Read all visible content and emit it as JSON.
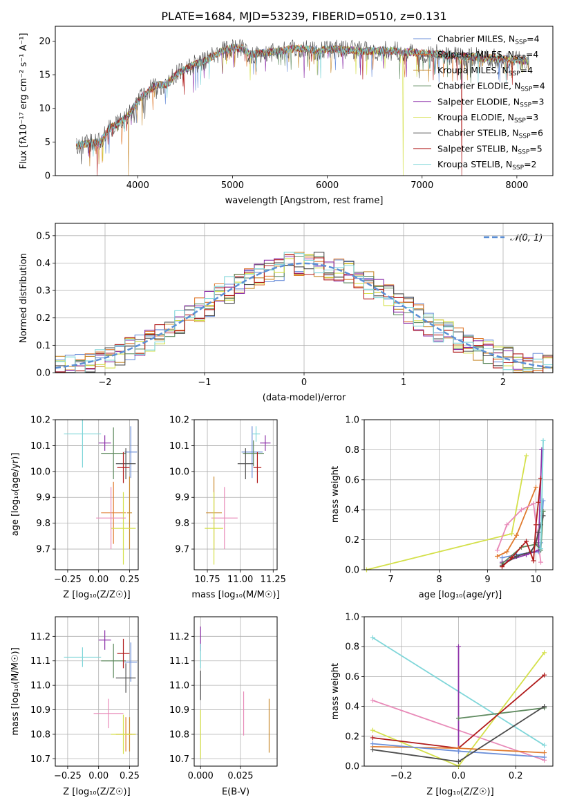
{
  "colors": {
    "Chabrier MILES": "#6b8fd9",
    "Salpeter MILES": "#e07a2e",
    "Kroupa MILES": "#c88a2e",
    "Chabrier ELODIE": "#5f8a5f",
    "Salpeter ELODIE": "#8c2fa8",
    "Kroupa ELODIE": "#d4e04a",
    "Chabrier STELIB": "#4d4d4d",
    "Salpeter STELIB": "#b01a1a",
    "Kroupa STELIB": "#7fd6d9",
    "normal_curve": "#5b8fd6"
  },
  "chart_data": [
    {
      "id": "spectrum",
      "type": "line",
      "title": "PLATE=1684, MJD=53239, FIBERID=0510, z=0.131",
      "xlabel": "wavelength [Angstrom, rest frame]",
      "ylabel": "Flux [fλ10⁻¹⁷ erg cm⁻² s⁻¹ A⁻¹]",
      "xlim": [
        3130,
        8380
      ],
      "ylim": [
        0,
        22.2
      ],
      "xticks": [
        4000,
        5000,
        6000,
        7000,
        8000
      ],
      "yticks": [
        0,
        5,
        10,
        15,
        20
      ],
      "legend_position": "top-right",
      "legend": [
        {
          "name": "Chabrier MILES, N",
          "sub": "SSP",
          "tail": "=4"
        },
        {
          "name": "Salpeter MILES, N",
          "sub": "SSP",
          "tail": "=4"
        },
        {
          "name": "Kroupa MILES, N",
          "sub": "SSP",
          "tail": "=4"
        },
        {
          "name": "Chabrier ELODIE, N",
          "sub": "SSP",
          "tail": "=4"
        },
        {
          "name": "Salpeter ELODIE, N",
          "sub": "SSP",
          "tail": "=3"
        },
        {
          "name": "Kroupa ELODIE, N",
          "sub": "SSP",
          "tail": "=3"
        },
        {
          "name": "Chabrier STELIB, N",
          "sub": "SSP",
          "tail": "=6"
        },
        {
          "name": "Salpeter STELIB, N",
          "sub": "SSP",
          "tail": "=5"
        },
        {
          "name": "Kroupa STELIB, N",
          "sub": "SSP",
          "tail": "=2"
        }
      ],
      "continuum": [
        [
          3350,
          4.5
        ],
        [
          3500,
          4.8
        ],
        [
          3600,
          5.0
        ],
        [
          3700,
          7.0
        ],
        [
          3800,
          7.8
        ],
        [
          3900,
          9.0
        ],
        [
          4000,
          11.0
        ],
        [
          4100,
          12.5
        ],
        [
          4200,
          13.5
        ],
        [
          4300,
          13.5
        ],
        [
          4400,
          15.0
        ],
        [
          4500,
          15.8
        ],
        [
          4600,
          16.5
        ],
        [
          4700,
          17.0
        ],
        [
          4800,
          17.8
        ],
        [
          4900,
          18.6
        ],
        [
          5000,
          19.0
        ],
        [
          5100,
          18.9
        ],
        [
          5200,
          18.0
        ],
        [
          5300,
          18.2
        ],
        [
          5400,
          18.4
        ],
        [
          5500,
          18.5
        ],
        [
          5600,
          18.8
        ],
        [
          5700,
          18.9
        ],
        [
          5800,
          18.8
        ],
        [
          5900,
          18.5
        ],
        [
          6000,
          18.9
        ],
        [
          6200,
          18.7
        ],
        [
          6400,
          18.5
        ],
        [
          6600,
          18.6
        ],
        [
          6800,
          18.4
        ],
        [
          7000,
          18.2
        ],
        [
          7200,
          18.0
        ],
        [
          7400,
          17.7
        ],
        [
          7600,
          17.6
        ],
        [
          7800,
          17.4
        ],
        [
          8000,
          17.2
        ],
        [
          8130,
          17.0
        ]
      ],
      "dropouts": [
        {
          "model": "Kroupa MILES",
          "x": 3900
        },
        {
          "model": "Kroupa ELODIE",
          "x": 6800
        },
        {
          "model": "Salpeter STELIB",
          "x": 7420
        },
        {
          "model": "Salpeter STELIB",
          "x": 3570
        }
      ]
    },
    {
      "id": "residual_hist",
      "type": "histogram",
      "xlabel": "(data-model)/error",
      "ylabel": "Normed distribution",
      "xlim": [
        -2.5,
        2.5
      ],
      "ylim": [
        0,
        0.545
      ],
      "xticks": [
        -2,
        -1,
        0,
        1,
        2
      ],
      "yticks": [
        0.0,
        0.1,
        0.2,
        0.3,
        0.4,
        0.5
      ],
      "bin_width": 0.1,
      "legend_position": "top-right",
      "reference_curve": {
        "label": "𝒩(0, 1)",
        "mean": 0,
        "sigma": 1
      },
      "series": [
        "Chabrier MILES",
        "Salpeter MILES",
        "Kroupa MILES",
        "Chabrier ELODIE",
        "Salpeter ELODIE",
        "Kroupa ELODIE",
        "Chabrier STELIB",
        "Salpeter STELIB",
        "Kroupa STELIB"
      ]
    },
    {
      "id": "age_vs_Z",
      "type": "scatter",
      "xlabel": "Z [log₁₀(Z/Z☉)]",
      "ylabel": "age  [log₁₀(age/yr)]",
      "xlim": [
        -0.35,
        0.32
      ],
      "ylim": [
        9.62,
        10.2
      ],
      "xticks": [
        -0.25,
        0.0,
        0.25
      ],
      "xticklabels": [
        "−0.25",
        "0.00",
        "0.25"
      ],
      "yticks": [
        9.7,
        9.8,
        9.9,
        10.0,
        10.1,
        10.2
      ],
      "points": [
        {
          "model": "Chabrier MILES",
          "x": 0.26,
          "y": 10.075,
          "xerr": 0.05,
          "yerr": 0.1
        },
        {
          "model": "Salpeter MILES",
          "x": 0.12,
          "y": 9.84,
          "xerr": 0.1,
          "yerr": 0.12
        },
        {
          "model": "Kroupa MILES",
          "x": 0.25,
          "y": 9.84,
          "xerr": 0.02,
          "yerr": 0.14
        },
        {
          "model": "Chabrier ELODIE",
          "x": 0.12,
          "y": 10.07,
          "xerr": 0.1,
          "yerr": 0.1
        },
        {
          "model": "Salpeter ELODIE",
          "x": 0.05,
          "y": 10.11,
          "xerr": 0.05,
          "yerr": 0.03
        },
        {
          "model": "Kroupa ELODIE",
          "x": 0.2,
          "y": 9.78,
          "xerr": 0.1,
          "yerr": 0.14
        },
        {
          "model": "Chabrier STELIB",
          "x": 0.22,
          "y": 10.03,
          "xerr": 0.08,
          "yerr": 0.06
        },
        {
          "model": "Salpeter STELIB",
          "x": 0.2,
          "y": 10.015,
          "xerr": 0.05,
          "yerr": 0.06
        },
        {
          "model": "Kroupa STELIB",
          "x": -0.13,
          "y": 10.145,
          "xerr": 0.15,
          "yerr": 0.13
        },
        {
          "model": "Salpeter MILES pink",
          "x": 0.1,
          "y": 9.82,
          "xerr": 0.12,
          "yerr": 0.12
        }
      ]
    },
    {
      "id": "age_vs_mass",
      "type": "scatter",
      "xlabel": "mass [log₁₀(M/M☉)]",
      "ylabel": "",
      "xlim": [
        10.65,
        11.28
      ],
      "ylim": [
        9.62,
        10.2
      ],
      "xticks": [
        10.75,
        11.0,
        11.25
      ],
      "xticklabels": [
        "10.75",
        "11.00",
        "11.25"
      ],
      "yticks": [
        9.7,
        9.8,
        9.9,
        10.0,
        10.1,
        10.2
      ],
      "points": [
        {
          "model": "Chabrier MILES",
          "x": 11.09,
          "y": 10.075,
          "xerr": 0.08,
          "yerr": 0.1
        },
        {
          "model": "Kroupa MILES",
          "x": 10.8,
          "y": 9.84,
          "xerr": 0.06,
          "yerr": 0.14
        },
        {
          "model": "Salpeter MILES pink",
          "x": 10.88,
          "y": 9.82,
          "xerr": 0.1,
          "yerr": 0.12
        },
        {
          "model": "Chabrier ELODIE",
          "x": 11.1,
          "y": 10.07,
          "xerr": 0.08,
          "yerr": 0.05
        },
        {
          "model": "Salpeter ELODIE",
          "x": 11.19,
          "y": 10.11,
          "xerr": 0.04,
          "yerr": 0.03
        },
        {
          "model": "Kroupa ELODIE",
          "x": 10.8,
          "y": 9.78,
          "xerr": 0.07,
          "yerr": 0.14
        },
        {
          "model": "Chabrier STELIB",
          "x": 11.04,
          "y": 10.03,
          "xerr": 0.06,
          "yerr": 0.06
        },
        {
          "model": "Salpeter STELIB",
          "x": 11.13,
          "y": 10.015,
          "xerr": 0.03,
          "yerr": 0.06
        },
        {
          "model": "Kroupa STELIB",
          "x": 11.12,
          "y": 10.145,
          "xerr": 0.03,
          "yerr": 0.03
        }
      ]
    },
    {
      "id": "weight_vs_age",
      "type": "line",
      "xlabel": "age  [log₁₀(age/yr)]",
      "ylabel": "mass weight",
      "xlim": [
        6.45,
        10.35
      ],
      "ylim": [
        0,
        1
      ],
      "xticks": [
        7,
        8,
        9,
        10
      ],
      "yticks": [
        0.0,
        0.2,
        0.4,
        0.6,
        0.8,
        1.0
      ],
      "series": [
        {
          "model": "Kroupa ELODIE",
          "x": [
            6.5,
            9.5,
            9.8
          ],
          "y": [
            0.0,
            0.24,
            0.76
          ]
        },
        {
          "model": "Salpeter MILES",
          "x": [
            9.2,
            9.4,
            9.6,
            10.0
          ],
          "y": [
            0.09,
            0.12,
            0.23,
            0.55
          ]
        },
        {
          "model": "Salpeter MILES pink",
          "x": [
            9.2,
            9.4,
            9.7,
            9.95,
            10.1
          ],
          "y": [
            0.13,
            0.3,
            0.4,
            0.44,
            0.05
          ]
        },
        {
          "model": "Chabrier MILES",
          "x": [
            9.3,
            9.6,
            10.05,
            10.1,
            10.15
          ],
          "y": [
            0.08,
            0.1,
            0.12,
            0.18,
            0.46
          ]
        },
        {
          "model": "Salpeter ELODIE",
          "x": [
            9.3,
            9.8,
            10.05,
            10.12
          ],
          "y": [
            0.05,
            0.1,
            0.13,
            0.8
          ]
        },
        {
          "model": "Chabrier ELODIE",
          "x": [
            9.3,
            9.7,
            10.0,
            10.1,
            10.15
          ],
          "y": [
            0.04,
            0.15,
            0.17,
            0.13,
            0.39
          ]
        },
        {
          "model": "Chabrier STELIB",
          "x": [
            9.3,
            9.6,
            9.9,
            10.0,
            10.05,
            10.1,
            10.15
          ],
          "y": [
            0.03,
            0.09,
            0.12,
            0.18,
            0.25,
            0.3,
            0.36
          ]
        },
        {
          "model": "Salpeter STELIB",
          "x": [
            9.3,
            9.5,
            9.8,
            9.95,
            10.0,
            10.05,
            10.1
          ],
          "y": [
            0.02,
            0.08,
            0.19,
            0.06,
            0.3,
            0.45,
            0.61
          ]
        },
        {
          "model": "Kroupa STELIB",
          "x": [
            10.1,
            10.15
          ],
          "y": [
            0.14,
            0.86
          ]
        }
      ]
    },
    {
      "id": "mass_vs_Z",
      "type": "scatter",
      "xlabel": "Z [log₁₀(Z/Z☉)]",
      "ylabel": "mass [log₁₀(M/M☉)]",
      "xlim": [
        -0.35,
        0.32
      ],
      "ylim": [
        10.67,
        11.28
      ],
      "xticks": [
        -0.25,
        0.0,
        0.25
      ],
      "xticklabels": [
        "−0.25",
        "0.00",
        "0.25"
      ],
      "yticks": [
        10.7,
        10.8,
        10.9,
        11.0,
        11.1,
        11.2
      ],
      "points": [
        {
          "model": "Chabrier MILES",
          "x": 0.26,
          "y": 11.095,
          "xerr": 0.05,
          "yerr": 0.08
        },
        {
          "model": "Salpeter MILES",
          "x": 0.22,
          "y": 10.8,
          "xerr": 0.08,
          "yerr": 0.07
        },
        {
          "model": "Kroupa MILES",
          "x": 0.25,
          "y": 10.8,
          "xerr": 0.02,
          "yerr": 0.07
        },
        {
          "model": "Salpeter MILES pink",
          "x": 0.08,
          "y": 10.885,
          "xerr": 0.12,
          "yerr": 0.06
        },
        {
          "model": "Chabrier ELODIE",
          "x": 0.12,
          "y": 11.1,
          "xerr": 0.1,
          "yerr": 0.07
        },
        {
          "model": "Salpeter ELODIE",
          "x": 0.05,
          "y": 11.185,
          "xerr": 0.05,
          "yerr": 0.04
        },
        {
          "model": "Kroupa ELODIE",
          "x": 0.2,
          "y": 10.8,
          "xerr": 0.1,
          "yerr": 0.08
        },
        {
          "model": "Chabrier STELIB",
          "x": 0.22,
          "y": 11.03,
          "xerr": 0.08,
          "yerr": 0.06
        },
        {
          "model": "Salpeter STELIB",
          "x": 0.2,
          "y": 11.13,
          "xerr": 0.05,
          "yerr": 0.06
        },
        {
          "model": "Kroupa STELIB",
          "x": -0.13,
          "y": 11.115,
          "xerr": 0.15,
          "yerr": 0.04
        }
      ]
    },
    {
      "id": "mass_vs_ebv",
      "type": "scatter",
      "xlabel": "E(B-V)",
      "ylabel": "",
      "xlim": [
        -0.004,
        0.048
      ],
      "ylim": [
        10.67,
        11.28
      ],
      "xticks": [
        0.0,
        0.025
      ],
      "xticklabels": [
        "0.000",
        "0.025"
      ],
      "yticks": [
        10.7,
        10.8,
        10.9,
        11.0,
        11.1,
        11.2
      ],
      "points": [
        {
          "model": "Salpeter ELODIE",
          "x": 0.0,
          "y": 11.19,
          "yerr": 0.05
        },
        {
          "model": "Kroupa STELIB",
          "x": 0.0,
          "y": 11.12,
          "yerr": 0.05
        },
        {
          "model": "Chabrier STELIB",
          "x": 0.0,
          "y": 11.0,
          "yerr": 0.06
        },
        {
          "model": "Kroupa ELODIE",
          "x": 0.0,
          "y": 10.8,
          "yerr": 0.1
        },
        {
          "model": "Salpeter MILES pink",
          "x": 0.027,
          "y": 10.885,
          "yerr": 0.09
        },
        {
          "model": "Kroupa MILES",
          "x": 0.043,
          "y": 10.835,
          "yerr": 0.11
        }
      ]
    },
    {
      "id": "weight_vs_Z",
      "type": "line",
      "xlabel": "Z [log₁₀(Z/Z☉)]",
      "ylabel": "mass weight",
      "xlim": [
        -0.33,
        0.33
      ],
      "ylim": [
        0,
        1
      ],
      "xticks": [
        -0.2,
        0.0,
        0.2
      ],
      "xticklabels": [
        "−0.2",
        "0.0",
        "0.2"
      ],
      "yticks": [
        0.0,
        0.2,
        0.4,
        0.6,
        0.8,
        1.0
      ],
      "series": [
        {
          "model": "Kroupa STELIB",
          "x": [
            -0.3,
            0.3
          ],
          "y": [
            0.86,
            0.14
          ]
        },
        {
          "model": "Salpeter MILES pink",
          "x": [
            -0.3,
            0.3
          ],
          "y": [
            0.44,
            0.04
          ]
        },
        {
          "model": "Kroupa ELODIE",
          "x": [
            -0.3,
            0.0,
            0.3
          ],
          "y": [
            0.24,
            0.0,
            0.76
          ]
        },
        {
          "model": "Salpeter ELODIE",
          "x": [
            0.0,
            0.0
          ],
          "y": [
            0.1,
            0.8
          ]
        },
        {
          "model": "Chabrier ELODIE",
          "x": [
            0.0,
            0.3
          ],
          "y": [
            0.32,
            0.39
          ]
        },
        {
          "model": "Salpeter STELIB",
          "x": [
            -0.3,
            0.0,
            0.3
          ],
          "y": [
            0.19,
            0.12,
            0.61
          ]
        },
        {
          "model": "Salpeter MILES",
          "x": [
            -0.3,
            0.0,
            0.3
          ],
          "y": [
            0.13,
            0.12,
            0.09
          ]
        },
        {
          "model": "Chabrier MILES",
          "x": [
            -0.3,
            0.0,
            0.3
          ],
          "y": [
            0.15,
            0.1,
            0.06
          ]
        },
        {
          "model": "Chabrier STELIB",
          "x": [
            -0.3,
            0.0,
            0.3
          ],
          "y": [
            0.11,
            0.03,
            0.4
          ]
        }
      ]
    }
  ]
}
